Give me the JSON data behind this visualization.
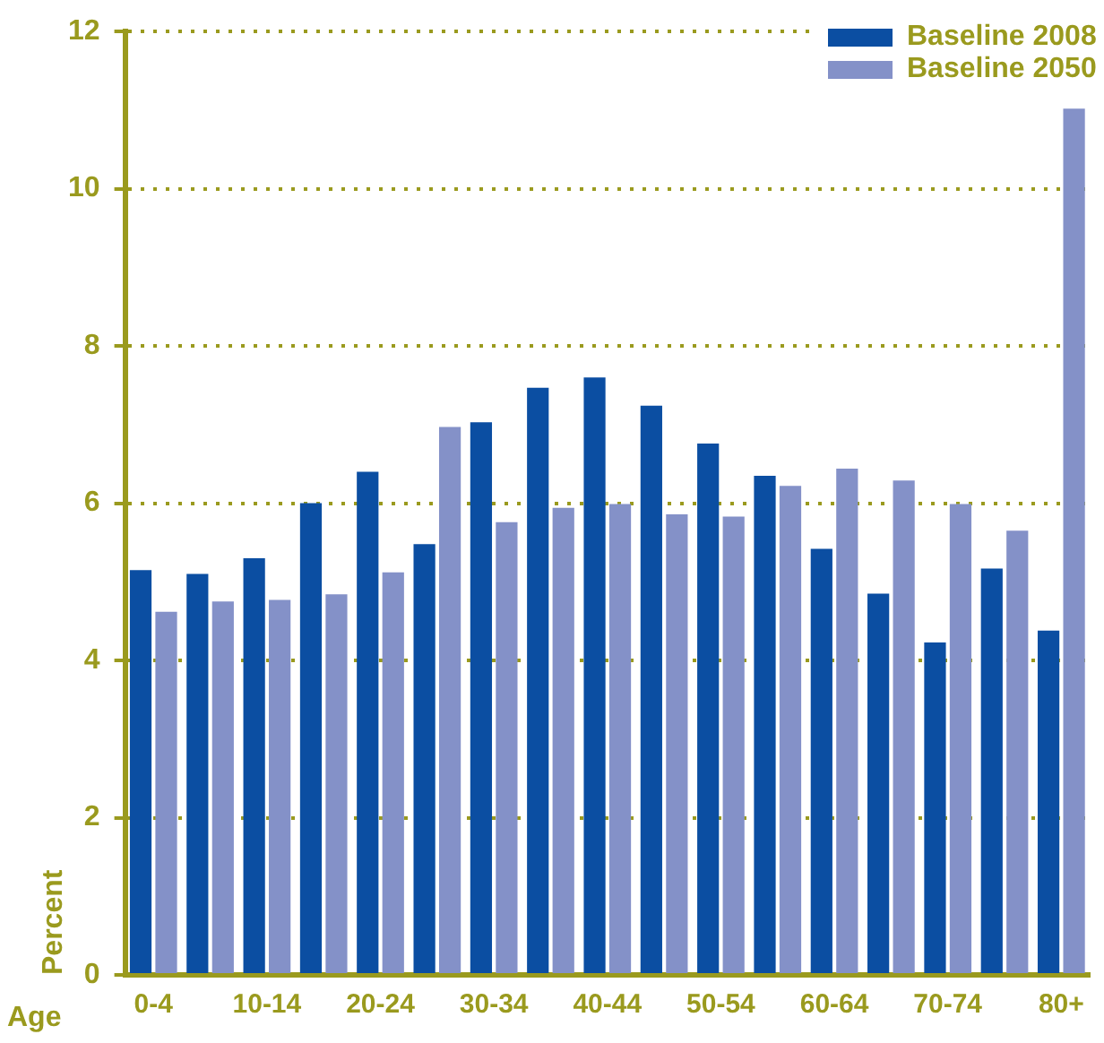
{
  "chart_data": {
    "type": "bar",
    "categories": [
      "0-4",
      null,
      "10-14",
      null,
      "20-24",
      null,
      "30-34",
      null,
      "40-44",
      null,
      "50-54",
      null,
      "60-64",
      null,
      "70-74",
      null,
      "80+"
    ],
    "series": [
      {
        "name": "Baseline 2008",
        "color": "#0b4ea2",
        "values": [
          5.15,
          5.1,
          5.3,
          6.0,
          6.4,
          5.48,
          7.03,
          7.47,
          7.6,
          7.24,
          6.76,
          6.35,
          5.42,
          4.85,
          4.23,
          5.17,
          4.38
        ]
      },
      {
        "name": "Baseline 2050",
        "color": "#8491c8",
        "values": [
          4.62,
          4.75,
          4.77,
          4.84,
          5.12,
          6.97,
          5.76,
          5.94,
          5.99,
          5.86,
          5.83,
          6.22,
          6.44,
          6.29,
          5.99,
          5.65,
          11.02
        ]
      }
    ],
    "xlabel": "Age",
    "ylabel": "Percent",
    "ylim": [
      0,
      12
    ],
    "yticks": [
      0,
      2,
      4,
      6,
      8,
      10,
      12
    ],
    "grid": "y",
    "legend": "top right"
  }
}
